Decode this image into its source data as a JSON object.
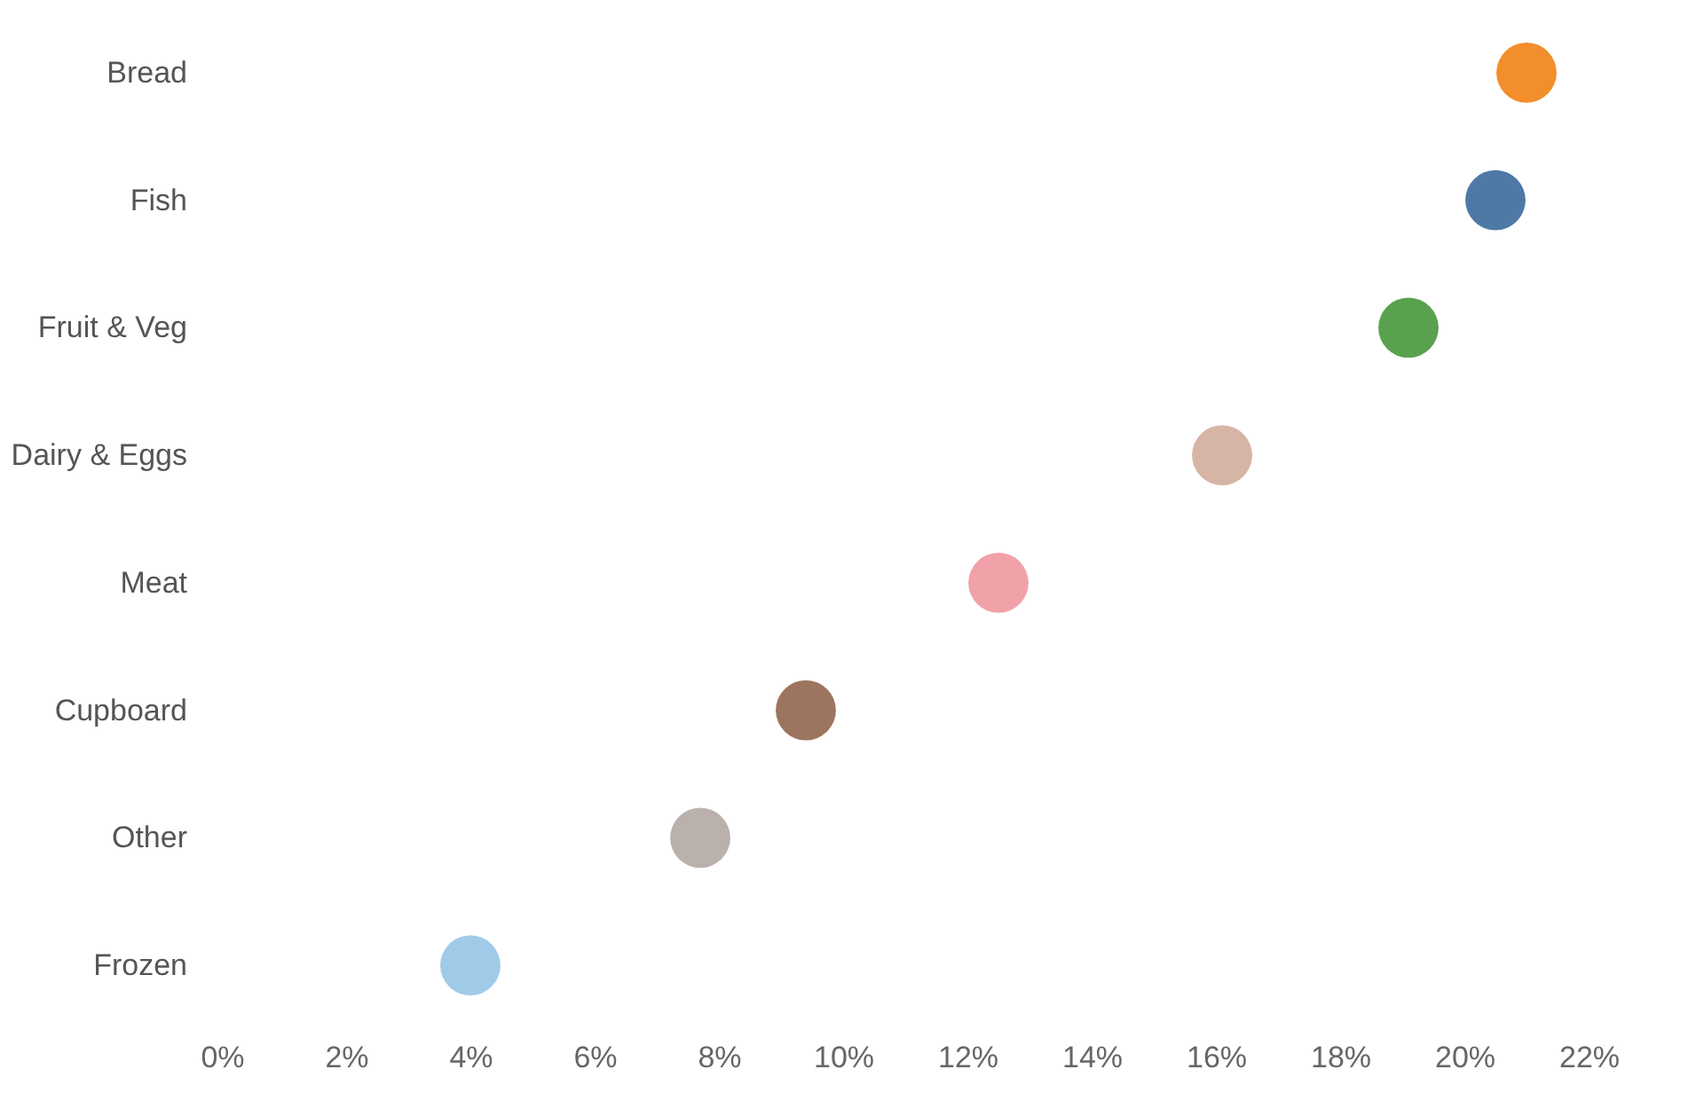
{
  "chart_data": {
    "type": "scatter",
    "orientation": "horizontal",
    "categories": [
      "Bread",
      "Fish",
      "Fruit & Veg",
      "Dairy & Eggs",
      "Meat",
      "Cupboard",
      "Other",
      "Frozen"
    ],
    "values": [
      21.0,
      20.5,
      19.1,
      16.1,
      12.5,
      9.4,
      7.7,
      4.0
    ],
    "colors": [
      "#f28e2b",
      "#4e79a7",
      "#59a14f",
      "#d7b5a6",
      "#f1a2a9",
      "#9c755f",
      "#bab0ac",
      "#a0cbe8"
    ],
    "xlim": [
      0,
      22
    ],
    "xticks": [
      {
        "value": 0,
        "label": "0%"
      },
      {
        "value": 2,
        "label": "2%"
      },
      {
        "value": 4,
        "label": "4%"
      },
      {
        "value": 6,
        "label": "6%"
      },
      {
        "value": 8,
        "label": "8%"
      },
      {
        "value": 10,
        "label": "10%"
      },
      {
        "value": 12,
        "label": "12%"
      },
      {
        "value": 14,
        "label": "14%"
      },
      {
        "value": 16,
        "label": "16%"
      },
      {
        "value": 18,
        "label": "18%"
      },
      {
        "value": 20,
        "label": "20%"
      },
      {
        "value": 22,
        "label": "22%"
      }
    ],
    "marker": "circle",
    "grid": false,
    "legend": false
  }
}
